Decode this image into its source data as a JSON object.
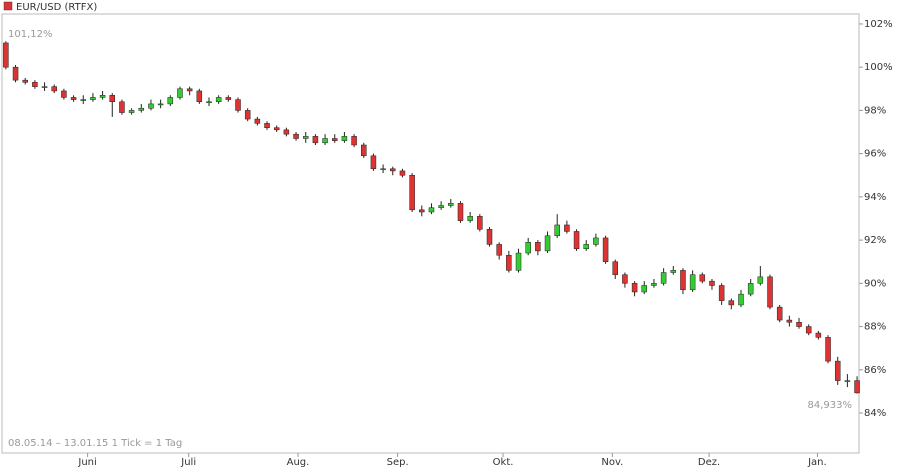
{
  "chart_data": {
    "type": "candlestick",
    "title": "EUR/USD (RTFX)",
    "color": "#dd3333",
    "up_color": "#33cc33",
    "down_color": "#dd3333",
    "annotations": [
      "101,12%",
      "84,933%"
    ],
    "footer": "08.05.14 – 13.01.15   1 Tick = 1 Tag",
    "open": [
      101.12,
      100.0,
      99.4,
      99.3,
      99.1,
      99.1,
      98.9,
      98.6,
      98.5,
      98.5,
      98.6,
      98.7,
      98.4,
      97.9,
      98.0,
      98.1,
      98.3,
      98.3,
      98.6,
      99.0,
      98.9,
      98.4,
      98.4,
      98.6,
      98.5,
      98.0,
      97.6,
      97.4,
      97.2,
      97.1,
      96.9,
      96.7,
      96.8,
      96.5,
      96.7,
      96.6,
      96.8,
      96.4,
      95.9,
      95.3,
      95.3,
      95.2,
      95.0,
      93.4,
      93.3,
      93.5,
      93.6,
      93.7,
      92.9,
      93.1,
      92.5,
      91.8,
      91.3,
      90.6,
      91.4,
      91.9,
      91.5,
      92.2,
      92.7,
      92.4,
      91.6,
      91.8,
      92.1,
      91.0,
      90.4,
      90.0,
      89.6,
      89.9,
      90.0,
      90.5,
      90.6,
      89.7,
      90.4,
      90.1,
      89.9,
      89.2,
      89.0,
      89.5,
      90.0,
      90.3,
      88.9,
      88.3,
      88.2,
      88.0,
      87.7,
      87.5,
      86.4,
      85.5,
      85.5
    ],
    "high": [
      101.2,
      100.1,
      99.5,
      99.4,
      99.3,
      99.2,
      99.0,
      98.7,
      98.7,
      98.8,
      98.9,
      98.8,
      98.5,
      98.1,
      98.3,
      98.5,
      98.5,
      98.7,
      99.1,
      99.1,
      99.0,
      98.6,
      98.7,
      98.7,
      98.6,
      98.1,
      97.7,
      97.5,
      97.3,
      97.2,
      97.0,
      97.0,
      96.9,
      96.9,
      96.9,
      97.0,
      96.9,
      96.5,
      96.0,
      95.5,
      95.4,
      95.3,
      95.1,
      93.6,
      93.7,
      93.8,
      93.9,
      93.8,
      93.3,
      93.2,
      92.6,
      91.9,
      91.5,
      91.6,
      92.1,
      92.0,
      92.4,
      93.2,
      92.9,
      92.5,
      92.0,
      92.3,
      92.2,
      91.1,
      90.5,
      90.1,
      90.1,
      90.2,
      90.7,
      90.8,
      90.7,
      90.6,
      90.5,
      90.2,
      90.0,
      89.3,
      89.7,
      90.2,
      90.8,
      90.4,
      89.0,
      88.5,
      88.4,
      88.1,
      87.8,
      87.6,
      86.6,
      85.8,
      85.7
    ],
    "low": [
      99.9,
      99.3,
      99.2,
      99.0,
      98.9,
      98.8,
      98.5,
      98.4,
      98.3,
      98.4,
      98.5,
      97.7,
      97.8,
      97.8,
      97.9,
      98.0,
      98.1,
      98.2,
      98.5,
      98.7,
      98.3,
      98.2,
      98.3,
      98.4,
      97.9,
      97.5,
      97.3,
      97.1,
      97.0,
      96.8,
      96.6,
      96.5,
      96.4,
      96.4,
      96.5,
      96.5,
      96.3,
      95.8,
      95.2,
      95.1,
      95.0,
      94.9,
      93.3,
      93.1,
      93.2,
      93.4,
      93.5,
      92.8,
      92.8,
      92.4,
      91.7,
      91.1,
      90.5,
      90.5,
      91.3,
      91.3,
      91.4,
      92.1,
      92.3,
      91.5,
      91.5,
      91.7,
      90.9,
      90.2,
      89.8,
      89.4,
      89.5,
      89.8,
      89.9,
      90.4,
      89.5,
      89.6,
      90.0,
      89.7,
      89.0,
      88.8,
      88.9,
      89.4,
      89.9,
      88.8,
      88.2,
      88.0,
      87.9,
      87.6,
      87.4,
      86.3,
      85.3,
      85.2,
      84.9
    ],
    "close": [
      100.0,
      99.4,
      99.3,
      99.1,
      99.1,
      98.9,
      98.6,
      98.5,
      98.5,
      98.6,
      98.7,
      98.4,
      97.9,
      98.0,
      98.1,
      98.3,
      98.3,
      98.6,
      99.0,
      98.9,
      98.4,
      98.4,
      98.6,
      98.5,
      98.0,
      97.6,
      97.4,
      97.2,
      97.1,
      96.9,
      96.7,
      96.8,
      96.5,
      96.7,
      96.6,
      96.8,
      96.4,
      95.9,
      95.3,
      95.3,
      95.2,
      95.0,
      93.4,
      93.3,
      93.5,
      93.6,
      93.7,
      92.9,
      93.1,
      92.5,
      91.8,
      91.3,
      90.6,
      91.4,
      91.9,
      91.5,
      92.2,
      92.7,
      92.4,
      91.6,
      91.8,
      92.1,
      91.0,
      90.4,
      90.0,
      89.6,
      89.9,
      90.0,
      90.5,
      90.6,
      89.7,
      90.4,
      90.1,
      89.9,
      89.2,
      89.0,
      89.5,
      90.0,
      90.3,
      88.9,
      88.3,
      88.2,
      88.0,
      87.7,
      87.5,
      86.4,
      85.5,
      85.5,
      84.93
    ],
    "xlim": [
      -0.4,
      88.2
    ],
    "xticks": [
      {
        "value": 8.45,
        "label": "Juni"
      },
      {
        "value": 18.9,
        "label": "Juli"
      },
      {
        "value": 30.2,
        "label": "Aug."
      },
      {
        "value": 40.5,
        "label": "Sep."
      },
      {
        "value": 51.4,
        "label": "Okt."
      },
      {
        "value": 62.7,
        "label": "Nov."
      },
      {
        "value": 72.7,
        "label": "Dez."
      },
      {
        "value": 83.9,
        "label": "Jan."
      }
    ],
    "ylim": [
      82.15,
      102.46
    ],
    "yticks": [
      {
        "value": 84,
        "label": "84%"
      },
      {
        "value": 86,
        "label": "86%"
      },
      {
        "value": 88,
        "label": "88%"
      },
      {
        "value": 90,
        "label": "90%"
      },
      {
        "value": 92,
        "label": "92%"
      },
      {
        "value": 94,
        "label": "94%"
      },
      {
        "value": 96,
        "label": "96%"
      },
      {
        "value": 98,
        "label": "98%"
      },
      {
        "value": 100,
        "label": "100%"
      },
      {
        "value": 102,
        "label": "102%"
      }
    ],
    "grid": false
  }
}
